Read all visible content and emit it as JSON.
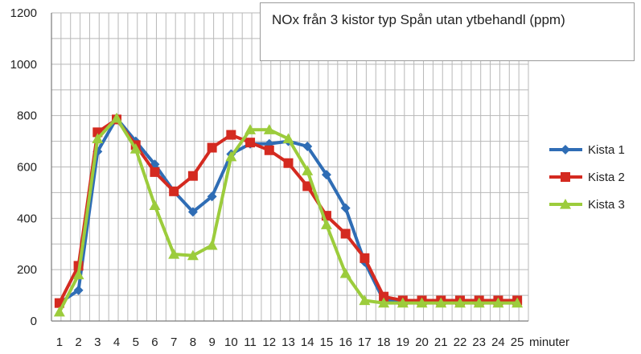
{
  "chart_data": {
    "type": "line",
    "title": "NOx från 3 kistor typ Spån utan ytbehandl (ppm)",
    "xlabel": "minuter",
    "ylabel": "",
    "x": [
      1,
      2,
      3,
      4,
      5,
      6,
      7,
      8,
      9,
      10,
      11,
      12,
      13,
      14,
      15,
      16,
      17,
      18,
      19,
      20,
      21,
      22,
      23,
      24,
      25
    ],
    "ylim": [
      0,
      1200
    ],
    "yticks": [
      0,
      200,
      400,
      600,
      800,
      1000,
      1200
    ],
    "grid": true,
    "legend": "right",
    "series": [
      {
        "name": "Kista 1",
        "color": "#2f6db5",
        "marker": "diamond",
        "values": [
          70,
          120,
          660,
          790,
          700,
          610,
          505,
          425,
          485,
          650,
          690,
          690,
          700,
          680,
          570,
          440,
          230,
          80,
          75,
          75,
          75,
          75,
          75,
          75,
          75
        ]
      },
      {
        "name": "Kista 2",
        "color": "#d42a20",
        "marker": "square",
        "values": [
          70,
          215,
          735,
          785,
          685,
          580,
          505,
          565,
          675,
          725,
          695,
          665,
          615,
          525,
          410,
          340,
          245,
          95,
          80,
          80,
          80,
          80,
          80,
          80,
          80
        ]
      },
      {
        "name": "Kista 3",
        "color": "#9ccc3c",
        "marker": "triangle",
        "values": [
          35,
          180,
          710,
          790,
          670,
          450,
          260,
          255,
          295,
          640,
          745,
          745,
          710,
          585,
          375,
          185,
          80,
          70,
          70,
          70,
          70,
          70,
          70,
          70,
          70
        ]
      }
    ]
  }
}
